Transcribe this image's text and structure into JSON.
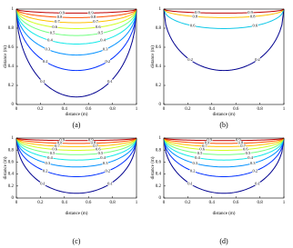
{
  "chart_data": [
    {
      "type": "contour",
      "caption": "(a)",
      "xlabel": "distance (m)",
      "ylabel": "distance (m)",
      "xlim": [
        0,
        1
      ],
      "ylim": [
        0,
        1
      ],
      "xticks": [
        0,
        0.2,
        0.4,
        0.6,
        0.8,
        1
      ],
      "yticks": [
        0,
        0.2,
        0.4,
        0.6,
        0.8,
        1
      ],
      "levels": [
        0.1,
        0.2,
        0.3,
        0.4,
        0.5,
        0.6,
        0.7,
        0.8,
        0.9
      ],
      "colors": [
        "#00008f",
        "#0030ff",
        "#0090ff",
        "#10e8e8",
        "#70ff80",
        "#d0ff20",
        "#ffc000",
        "#ff5000",
        "#c00000"
      ]
    },
    {
      "type": "contour",
      "caption": "(b)",
      "xlabel": "distance (m)",
      "ylabel": "distance (m)",
      "xlim": [
        0,
        1
      ],
      "ylim": [
        0,
        1
      ],
      "xticks": [
        0,
        0.2,
        0.4,
        0.6,
        0.8,
        1
      ],
      "yticks": [
        0,
        0.2,
        0.4,
        0.6,
        0.8,
        1
      ],
      "levels": [
        0.2,
        0.6,
        0.8,
        0.9
      ],
      "colors": [
        "#00008f",
        "#10c8e8",
        "#ffc000",
        "#c00000"
      ]
    },
    {
      "type": "contour",
      "caption": "(c)",
      "xlabel": "distance (m)",
      "ylabel": "distance (m)",
      "xlim": [
        0,
        1
      ],
      "ylim": [
        0,
        1
      ],
      "xticks": [
        0,
        0.2,
        0.4,
        0.6,
        0.8,
        1
      ],
      "yticks": [
        0,
        0.2,
        0.4,
        0.6,
        0.8,
        1
      ],
      "levels": [
        0.1,
        0.2,
        0.3,
        0.4,
        0.5,
        0.6,
        0.7,
        0.8,
        0.9
      ],
      "colors": [
        "#00008f",
        "#0030ff",
        "#0090ff",
        "#10e8e8",
        "#70ff80",
        "#d0ff20",
        "#ffc000",
        "#ff5000",
        "#c00000"
      ]
    },
    {
      "type": "contour",
      "caption": "(d)",
      "xlabel": "distance (m)",
      "ylabel": "distance (m)",
      "xlim": [
        0,
        1
      ],
      "ylim": [
        0,
        1
      ],
      "xticks": [
        0,
        0.2,
        0.4,
        0.6,
        0.8,
        1
      ],
      "yticks": [
        0,
        0.2,
        0.4,
        0.6,
        0.8,
        1
      ],
      "levels": [
        0.1,
        0.2,
        0.3,
        0.4,
        0.5,
        0.6,
        0.7,
        0.8,
        0.9
      ],
      "colors": [
        "#00008f",
        "#0030ff",
        "#0090ff",
        "#10e8e8",
        "#70ff80",
        "#d0ff20",
        "#ffc000",
        "#ff5000",
        "#c00000"
      ]
    }
  ]
}
